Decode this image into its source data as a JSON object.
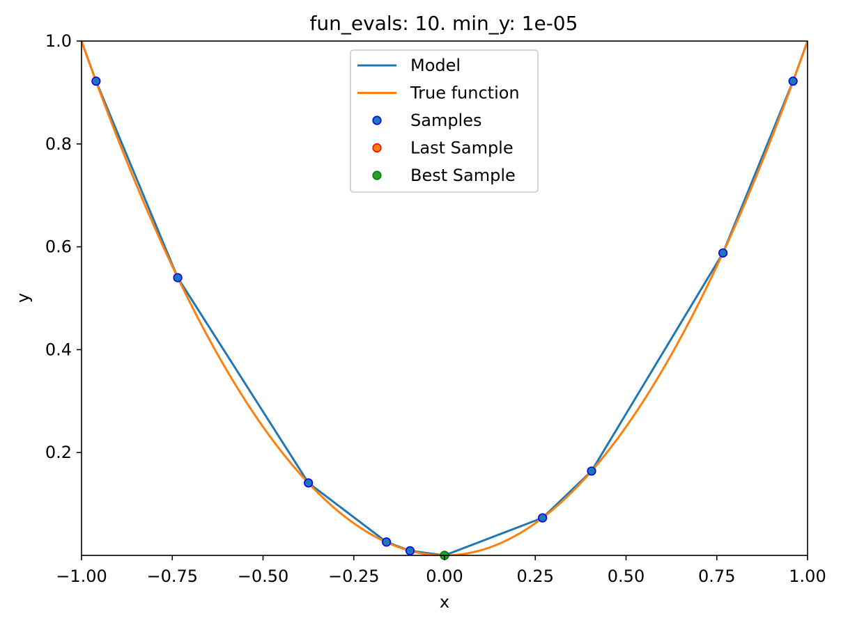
{
  "chart_data": {
    "type": "line",
    "title": "fun_evals: 10. min_y: 1e-05",
    "xlabel": "x",
    "ylabel": "y",
    "xlim": [
      -1.0,
      1.0
    ],
    "ylim": [
      0.0,
      1.0
    ],
    "grid": false,
    "legend_placement": "upper center",
    "xticks": [
      -1.0,
      -0.75,
      -0.5,
      -0.25,
      0.0,
      0.25,
      0.5,
      0.75,
      1.0
    ],
    "xtick_labels": [
      "−1.00",
      "−0.75",
      "−0.50",
      "−0.25",
      "0.00",
      "0.25",
      "0.50",
      "0.75",
      "1.00"
    ],
    "yticks": [
      0.2,
      0.4,
      0.6,
      0.8,
      1.0
    ],
    "ytick_labels": [
      "0.2",
      "0.4",
      "0.6",
      "0.8",
      "1.0"
    ],
    "series": [
      {
        "name": "Model",
        "kind": "line",
        "color": "#1f77b4",
        "x": [
          -1.0,
          -0.96,
          -0.735,
          -0.375,
          -0.16,
          -0.095,
          0.0,
          0.27,
          0.405,
          0.767,
          0.96,
          1.0
        ],
        "y": [
          1.0,
          0.922,
          0.54,
          0.141,
          0.026,
          0.009,
          0.0,
          0.073,
          0.164,
          0.588,
          0.922,
          1.0
        ]
      },
      {
        "name": "True function",
        "kind": "line",
        "color": "#ff7f0e",
        "function": "x^2",
        "x": [
          -1.0,
          -0.9,
          -0.8,
          -0.7,
          -0.6,
          -0.5,
          -0.4,
          -0.3,
          -0.2,
          -0.1,
          0.0,
          0.1,
          0.2,
          0.3,
          0.4,
          0.5,
          0.6,
          0.7,
          0.8,
          0.9,
          1.0
        ],
        "y": [
          1.0,
          0.81,
          0.64,
          0.49,
          0.36,
          0.25,
          0.16,
          0.09,
          0.04,
          0.01,
          0.0,
          0.01,
          0.04,
          0.09,
          0.16,
          0.25,
          0.36,
          0.49,
          0.64,
          0.81,
          1.0
        ]
      },
      {
        "name": "Samples",
        "kind": "scatter",
        "color": "#1f77b4",
        "edgecolor": "#0000ff",
        "x": [
          -0.96,
          -0.735,
          -0.375,
          -0.16,
          -0.095,
          0.0,
          0.27,
          0.405,
          0.767,
          0.96
        ],
        "y": [
          0.922,
          0.54,
          0.141,
          0.026,
          0.009,
          0.0,
          0.073,
          0.164,
          0.588,
          0.922
        ]
      },
      {
        "name": "Last Sample",
        "kind": "scatter",
        "color": "#ff7f0e",
        "edgecolor": "#ff0000",
        "x": [],
        "y": []
      },
      {
        "name": "Best Sample",
        "kind": "scatter",
        "color": "#2ca02c",
        "edgecolor": "#008000",
        "x": [
          0.0
        ],
        "y": [
          1e-05
        ]
      }
    ]
  }
}
